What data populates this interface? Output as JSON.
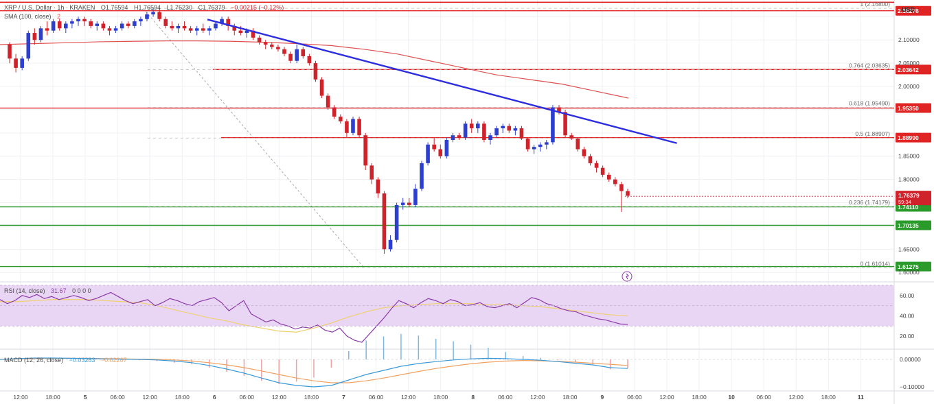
{
  "header": {
    "symbol": "XRP / U.S. Dollar · 1h · KRAKEN",
    "open": "O1.76594",
    "high": "H1.76594",
    "low": "L1.76230",
    "close": "C1.76379",
    "change": "−0.00215 (−0.12%)",
    "sma_label": "SMA (100, close)",
    "sma_value": "2"
  },
  "rsi_header": {
    "label": "RSI (14, close)",
    "value": "31.67",
    "extra": "0 0 0 0"
  },
  "macd_header": {
    "label": "MACD (12, 26, close)",
    "macd": "−0.03283",
    "signal": "−0.02207"
  },
  "currency": "USD",
  "colors": {
    "up": "#2d3fcf",
    "down": "#d0222a",
    "trendline": "#2d2ee0",
    "sma": "#e05050",
    "resistance": "#e02424",
    "support": "#2a9a2a",
    "rsi_line": "#8a3aa8",
    "rsi_ma": "#f0d070",
    "rsi_band": "#e9d6f4",
    "macd": "#3a9ad8",
    "signal": "#f0a060"
  },
  "chart_data": {
    "type": "candlestick",
    "price_axis": {
      "ticks": [
        "2.10000",
        "2.05000",
        "2.00000",
        "1.85000",
        "1.80000",
        "1.65000",
        "1.60000"
      ],
      "ylim": [
        1.59,
        2.18
      ]
    },
    "x_axis": {
      "ticks": [
        "12:00",
        "18:00",
        "5",
        "06:00",
        "12:00",
        "18:00",
        "6",
        "06:00",
        "12:00",
        "18:00",
        "7",
        "06:00",
        "12:00",
        "18:00",
        "8",
        "06:00",
        "12:00",
        "18:00",
        "9",
        "06:00",
        "12:00",
        "18:00",
        "10",
        "06:00",
        "12:00",
        "18:00",
        "11"
      ]
    },
    "horizontal_levels": [
      {
        "label": "2.16276",
        "value": 2.16276,
        "kind": "resistance"
      },
      {
        "label": "2.03642",
        "value": 2.03642,
        "kind": "resistance"
      },
      {
        "label": "1.95350",
        "value": 1.9535,
        "kind": "resistance"
      },
      {
        "label": "1.88990",
        "value": 1.8899,
        "kind": "resistance"
      },
      {
        "label": "1.74110",
        "value": 1.7411,
        "kind": "support"
      },
      {
        "label": "1.70135",
        "value": 1.70135,
        "kind": "support"
      },
      {
        "label": "1.61275",
        "value": 1.61275,
        "kind": "support"
      }
    ],
    "top_line": 2.181,
    "current_price": {
      "label": "1.76379",
      "countdown": "59:34",
      "value": 1.76379
    },
    "fibonacci": [
      {
        "label": "1 (2.16800)",
        "value": 2.168
      },
      {
        "label": "0.764 (2.03635)",
        "value": 2.03635
      },
      {
        "label": "0.618 (1.95490)",
        "value": 1.9549
      },
      {
        "label": "0.5 (1.88907)",
        "value": 1.88907
      },
      {
        "label": "0.236 (1.74179)",
        "value": 1.74179
      },
      {
        "label": "0 (1.61014)",
        "value": 1.61014
      }
    ],
    "trendline": {
      "from": [
        0.232,
        2.144
      ],
      "to": [
        0.757,
        1.878
      ]
    },
    "fib_diagonal": {
      "from": [
        0.16,
        2.168
      ],
      "to": [
        0.407,
        1.61
      ]
    },
    "candles": [
      [
        2.09,
        2.095,
        2.05,
        2.06
      ],
      [
        2.06,
        2.07,
        2.03,
        2.04
      ],
      [
        2.04,
        2.065,
        2.035,
        2.06
      ],
      [
        2.06,
        2.12,
        2.055,
        2.115
      ],
      [
        2.115,
        2.125,
        2.09,
        2.1
      ],
      [
        2.1,
        2.13,
        2.095,
        2.125
      ],
      [
        2.125,
        2.14,
        2.11,
        2.12
      ],
      [
        2.12,
        2.145,
        2.115,
        2.14
      ],
      [
        2.14,
        2.145,
        2.12,
        2.125
      ],
      [
        2.125,
        2.14,
        2.115,
        2.135
      ],
      [
        2.135,
        2.145,
        2.125,
        2.14
      ],
      [
        2.14,
        2.15,
        2.13,
        2.145
      ],
      [
        2.145,
        2.15,
        2.13,
        2.14
      ],
      [
        2.14,
        2.145,
        2.125,
        2.13
      ],
      [
        2.13,
        2.14,
        2.12,
        2.135
      ],
      [
        2.135,
        2.14,
        2.12,
        2.125
      ],
      [
        2.125,
        2.13,
        2.11,
        2.12
      ],
      [
        2.12,
        2.13,
        2.115,
        2.125
      ],
      [
        2.125,
        2.14,
        2.12,
        2.135
      ],
      [
        2.135,
        2.14,
        2.125,
        2.13
      ],
      [
        2.13,
        2.145,
        2.125,
        2.14
      ],
      [
        2.14,
        2.15,
        2.13,
        2.145
      ],
      [
        2.145,
        2.16,
        2.14,
        2.155
      ],
      [
        2.155,
        2.17,
        2.15,
        2.16
      ],
      [
        2.16,
        2.168,
        2.14,
        2.145
      ],
      [
        2.145,
        2.15,
        2.125,
        2.13
      ],
      [
        2.13,
        2.14,
        2.12,
        2.125
      ],
      [
        2.125,
        2.135,
        2.115,
        2.13
      ],
      [
        2.13,
        2.14,
        2.12,
        2.125
      ],
      [
        2.125,
        2.13,
        2.115,
        2.12
      ],
      [
        2.12,
        2.13,
        2.11,
        2.125
      ],
      [
        2.125,
        2.135,
        2.115,
        2.12
      ],
      [
        2.12,
        2.13,
        2.11,
        2.125
      ],
      [
        2.125,
        2.14,
        2.12,
        2.135
      ],
      [
        2.135,
        2.15,
        2.13,
        2.145
      ],
      [
        2.145,
        2.15,
        2.12,
        2.13
      ],
      [
        2.13,
        2.135,
        2.11,
        2.12
      ],
      [
        2.12,
        2.13,
        2.11,
        2.115
      ],
      [
        2.115,
        2.125,
        2.105,
        2.12
      ],
      [
        2.12,
        2.125,
        2.1,
        2.105
      ],
      [
        2.105,
        2.11,
        2.09,
        2.095
      ],
      [
        2.095,
        2.1,
        2.08,
        2.09
      ],
      [
        2.09,
        2.095,
        2.08,
        2.085
      ],
      [
        2.085,
        2.09,
        2.075,
        2.08
      ],
      [
        2.08,
        2.085,
        2.065,
        2.07
      ],
      [
        2.07,
        2.075,
        2.05,
        2.055
      ],
      [
        2.055,
        2.09,
        2.05,
        2.08
      ],
      [
        2.08,
        2.085,
        2.06,
        2.065
      ],
      [
        2.065,
        2.07,
        2.045,
        2.05
      ],
      [
        2.05,
        2.055,
        2.01,
        2.015
      ],
      [
        2.015,
        2.02,
        1.975,
        1.98
      ],
      [
        1.98,
        1.985,
        1.95,
        1.955
      ],
      [
        1.955,
        1.96,
        1.93,
        1.935
      ],
      [
        1.935,
        1.94,
        1.92,
        1.925
      ],
      [
        1.925,
        1.93,
        1.89,
        1.9
      ],
      [
        1.9,
        1.935,
        1.895,
        1.93
      ],
      [
        1.93,
        1.935,
        1.89,
        1.895
      ],
      [
        1.895,
        1.9,
        1.82,
        1.83
      ],
      [
        1.83,
        1.835,
        1.79,
        1.8
      ],
      [
        1.8,
        1.805,
        1.76,
        1.77
      ],
      [
        1.77,
        1.775,
        1.64,
        1.65
      ],
      [
        1.65,
        1.68,
        1.645,
        1.67
      ],
      [
        1.67,
        1.75,
        1.665,
        1.745
      ],
      [
        1.745,
        1.76,
        1.735,
        1.75
      ],
      [
        1.75,
        1.76,
        1.74,
        1.745
      ],
      [
        1.745,
        1.79,
        1.74,
        1.78
      ],
      [
        1.78,
        1.84,
        1.775,
        1.835
      ],
      [
        1.835,
        1.88,
        1.83,
        1.875
      ],
      [
        1.875,
        1.89,
        1.86,
        1.865
      ],
      [
        1.865,
        1.875,
        1.845,
        1.85
      ],
      [
        1.85,
        1.89,
        1.845,
        1.885
      ],
      [
        1.885,
        1.9,
        1.88,
        1.895
      ],
      [
        1.895,
        1.9,
        1.885,
        1.89
      ],
      [
        1.89,
        1.925,
        1.885,
        1.92
      ],
      [
        1.92,
        1.93,
        1.9,
        1.91
      ],
      [
        1.91,
        1.925,
        1.9,
        1.92
      ],
      [
        1.92,
        1.925,
        1.88,
        1.885
      ],
      [
        1.885,
        1.9,
        1.875,
        1.895
      ],
      [
        1.895,
        1.915,
        1.89,
        1.91
      ],
      [
        1.91,
        1.92,
        1.9,
        1.915
      ],
      [
        1.915,
        1.92,
        1.9,
        1.905
      ],
      [
        1.905,
        1.915,
        1.895,
        1.91
      ],
      [
        1.91,
        1.915,
        1.885,
        1.888
      ],
      [
        1.888,
        1.89,
        1.86,
        1.865
      ],
      [
        1.865,
        1.875,
        1.855,
        1.87
      ],
      [
        1.87,
        1.88,
        1.86,
        1.875
      ],
      [
        1.875,
        1.885,
        1.865,
        1.88
      ],
      [
        1.88,
        1.96,
        1.875,
        1.955
      ],
      [
        1.955,
        1.96,
        1.94,
        1.945
      ],
      [
        1.945,
        1.95,
        1.89,
        1.895
      ],
      [
        1.895,
        1.9,
        1.885,
        1.888
      ],
      [
        1.888,
        1.89,
        1.86,
        1.865
      ],
      [
        1.865,
        1.87,
        1.845,
        1.85
      ],
      [
        1.85,
        1.855,
        1.83,
        1.835
      ],
      [
        1.835,
        1.84,
        1.815,
        1.825
      ],
      [
        1.825,
        1.83,
        1.805,
        1.81
      ],
      [
        1.81,
        1.815,
        1.795,
        1.8
      ],
      [
        1.8,
        1.805,
        1.785,
        1.79
      ],
      [
        1.79,
        1.795,
        1.73,
        1.775
      ],
      [
        1.775,
        1.78,
        1.76,
        1.765
      ]
    ],
    "sma100": [
      2.09,
      2.092,
      2.094,
      2.096,
      2.097,
      2.098,
      2.098,
      2.097,
      2.095,
      2.092,
      2.088,
      2.08,
      2.07,
      2.055,
      2.04,
      2.025,
      2.015,
      2.005,
      1.99,
      1.975
    ],
    "rsi": {
      "ticks": [
        "60.00",
        "40.00",
        "20.00"
      ],
      "ylim": [
        10,
        70
      ],
      "band": [
        30,
        70
      ],
      "values": [
        56,
        52,
        55,
        60,
        58,
        61,
        57,
        59,
        56,
        58,
        60,
        58,
        55,
        57,
        60,
        63,
        59,
        55,
        52,
        54,
        56,
        50,
        53,
        57,
        55,
        52,
        50,
        54,
        56,
        58,
        53,
        45,
        50,
        55,
        42,
        38,
        34,
        36,
        32,
        30,
        27,
        29,
        28,
        31,
        26,
        24,
        28,
        20,
        16,
        14,
        22,
        30,
        38,
        47,
        55,
        52,
        48,
        53,
        57,
        55,
        52,
        56,
        54,
        50,
        51,
        53,
        49,
        48,
        50,
        52,
        48,
        53,
        58,
        56,
        52,
        50,
        47,
        45,
        44,
        41,
        39,
        37,
        36,
        34,
        32,
        31.67
      ],
      "ma": [
        54,
        54,
        55,
        56,
        56,
        56,
        55,
        54,
        53,
        50,
        46,
        42,
        38,
        35,
        31,
        28,
        25,
        24,
        28,
        33,
        39,
        44,
        48,
        50,
        51,
        52,
        52,
        52,
        51,
        51,
        50,
        49,
        47,
        45,
        43,
        41,
        40
      ]
    },
    "macd": {
      "ticks": [
        "0.00000",
        "−0.10000"
      ],
      "ylim": [
        -0.11,
        0.03
      ],
      "macd": [
        0.0,
        0.003,
        0.005,
        0.005,
        0.004,
        0.003,
        0.002,
        0.001,
        0.0,
        -0.002,
        -0.006,
        -0.012,
        -0.022,
        -0.035,
        -0.05,
        -0.068,
        -0.085,
        -0.095,
        -0.1,
        -0.095,
        -0.075,
        -0.055,
        -0.04,
        -0.025,
        -0.015,
        -0.008,
        -0.002,
        0.002,
        0.004,
        0.003,
        0.0,
        -0.003,
        -0.008,
        -0.014,
        -0.02,
        -0.03,
        -0.033
      ],
      "signal": [
        0.0,
        0.002,
        0.003,
        0.004,
        0.004,
        0.004,
        0.003,
        0.002,
        0.001,
        0.0,
        -0.002,
        -0.006,
        -0.012,
        -0.02,
        -0.03,
        -0.042,
        -0.055,
        -0.068,
        -0.078,
        -0.085,
        -0.085,
        -0.078,
        -0.068,
        -0.056,
        -0.044,
        -0.033,
        -0.024,
        -0.016,
        -0.01,
        -0.006,
        -0.004,
        -0.005,
        -0.007,
        -0.01,
        -0.014,
        -0.018,
        -0.022
      ]
    }
  }
}
